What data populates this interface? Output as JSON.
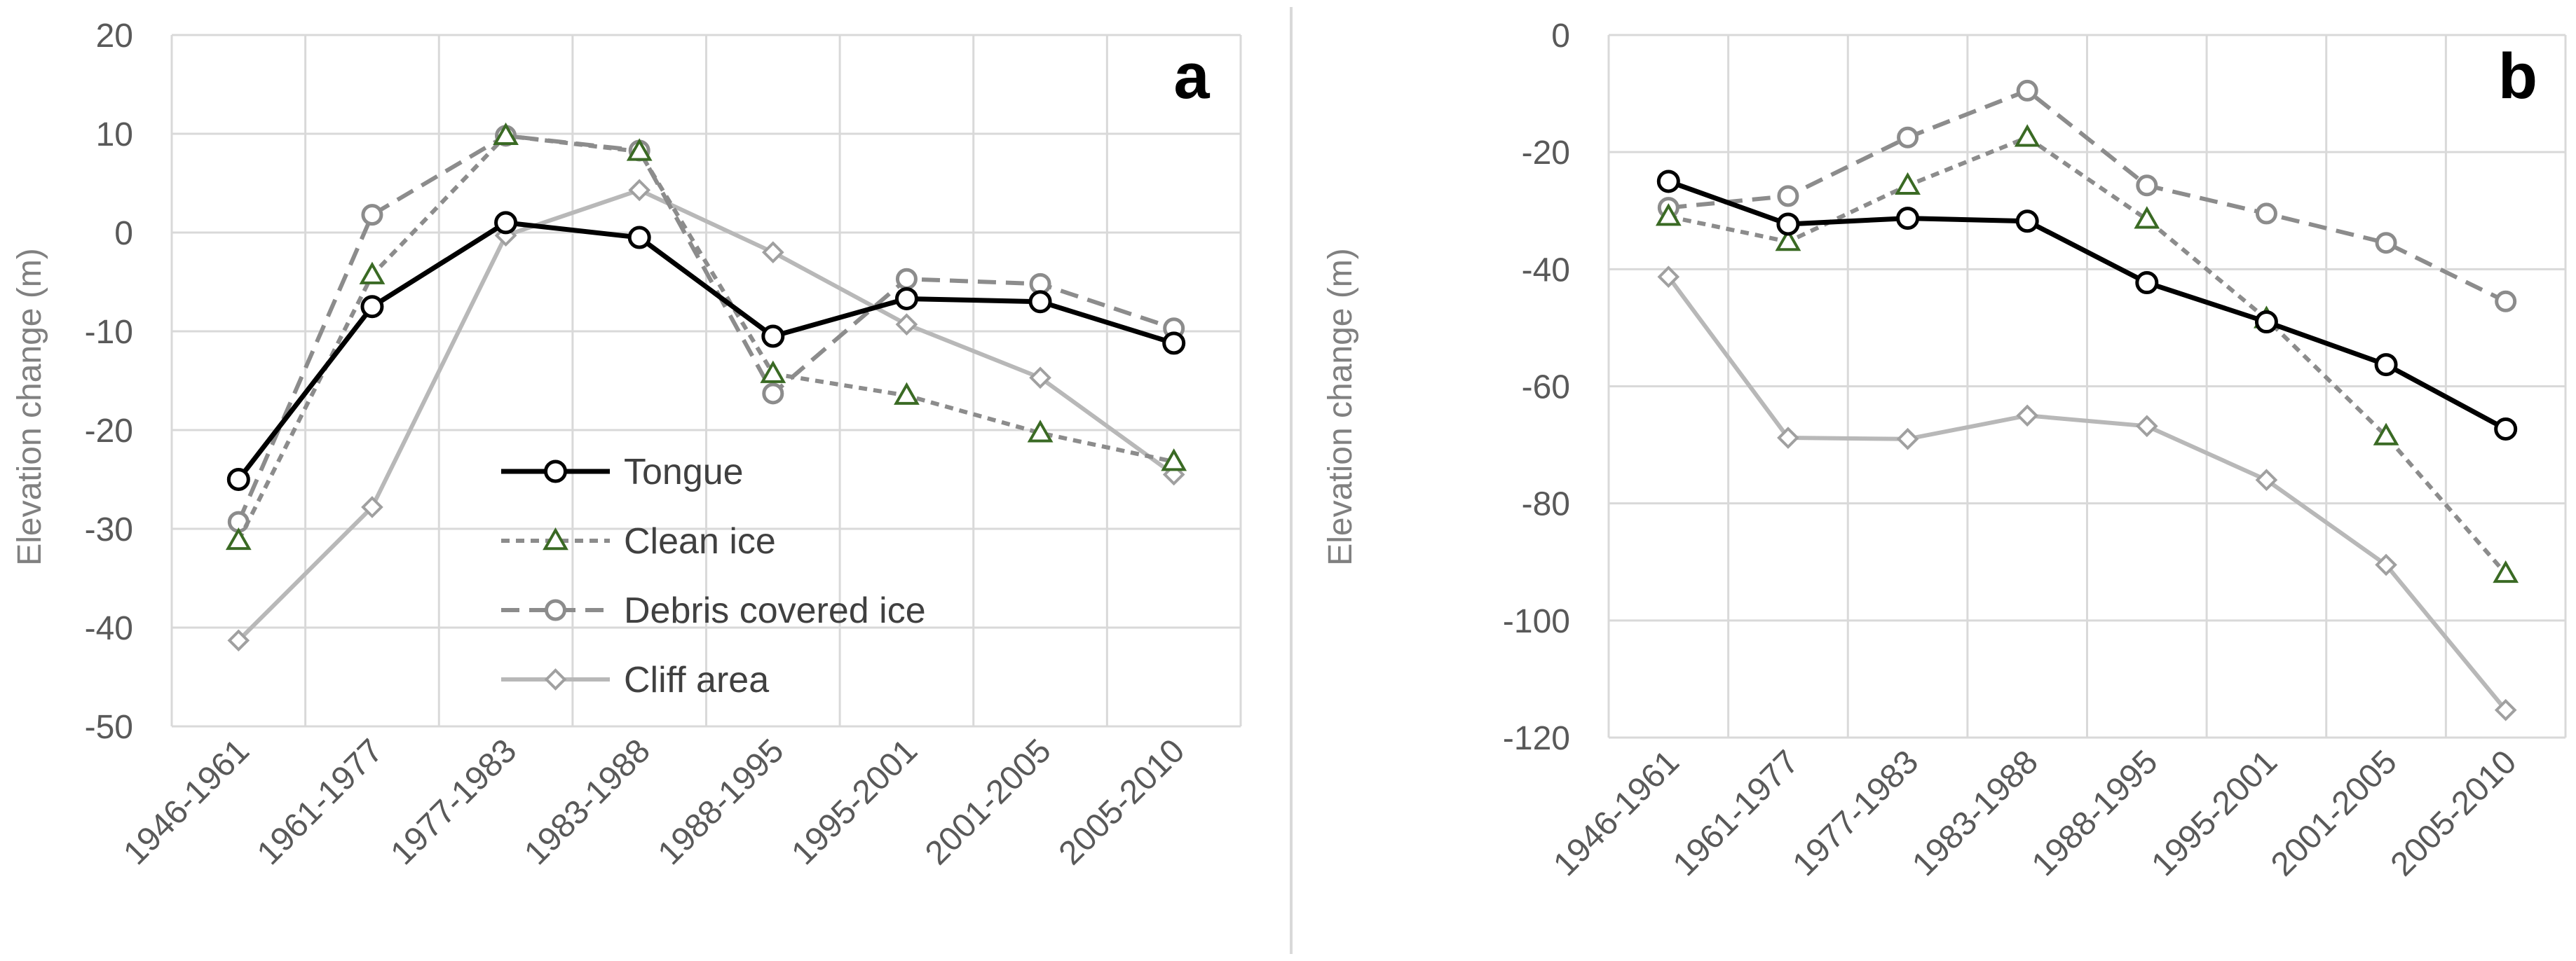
{
  "chart_data": [
    {
      "type": "line",
      "panel_label": "a",
      "ylabel": "Elevation change (m)",
      "xlabel": "",
      "ylim": [
        -50,
        20
      ],
      "yticks": [
        "20",
        "10",
        "0",
        "-10",
        "-20",
        "-30",
        "-40",
        "-50"
      ],
      "ytick_values": [
        20,
        10,
        0,
        -10,
        -20,
        -30,
        -40,
        -50
      ],
      "categories": [
        "1946-1961",
        "1961-1977",
        "1977-1983",
        "1983-1988",
        "1988-1995",
        "1995-2001",
        "2001-2005",
        "2005-2010"
      ],
      "grid": true,
      "legend": "center-left",
      "series": [
        {
          "name": "Tongue",
          "values": [
            -25.0,
            -7.5,
            1.0,
            -0.5,
            -10.5,
            -6.7,
            -7.0,
            -11.2
          ]
        },
        {
          "name": "Clean ice",
          "values": [
            -31.2,
            -4.3,
            9.8,
            8.2,
            -14.3,
            -16.5,
            -20.3,
            -23.2
          ]
        },
        {
          "name": "Debris covered ice",
          "values": [
            -29.3,
            1.8,
            9.8,
            8.3,
            -16.3,
            -4.7,
            -5.2,
            -9.7
          ]
        },
        {
          "name": "Cliff area",
          "values": [
            -41.3,
            -27.8,
            -0.3,
            4.3,
            -2.0,
            -9.3,
            -14.7,
            -24.5
          ]
        }
      ]
    },
    {
      "type": "line",
      "panel_label": "b",
      "ylabel": "Elevation change (m)",
      "xlabel": "",
      "ylim": [
        -120,
        0
      ],
      "yticks": [
        "0",
        "-20",
        "-40",
        "-60",
        "-80",
        "-100",
        "-120"
      ],
      "ytick_values": [
        0,
        -20,
        -40,
        -60,
        -80,
        -100,
        -120
      ],
      "categories": [
        "1946-1961",
        "1961-1977",
        "1977-1983",
        "1983-1988",
        "1988-1995",
        "1995-2001",
        "2001-2005",
        "2005-2010"
      ],
      "grid": true,
      "legend": "none",
      "series": [
        {
          "name": "Tongue",
          "values": [
            -25.0,
            -32.3,
            -31.3,
            -31.8,
            -42.3,
            -49.0,
            -56.3,
            -67.3
          ]
        },
        {
          "name": "Clean ice",
          "values": [
            -31.0,
            -35.3,
            -25.7,
            -17.5,
            -31.5,
            -48.5,
            -68.5,
            -92.0
          ]
        },
        {
          "name": "Debris covered ice",
          "values": [
            -29.5,
            -27.5,
            -17.5,
            -9.5,
            -25.7,
            -30.5,
            -35.5,
            -45.5
          ]
        },
        {
          "name": "Cliff area",
          "values": [
            -41.3,
            -68.8,
            -69.0,
            -65.0,
            -66.8,
            -76.0,
            -90.5,
            -115.3
          ]
        }
      ]
    }
  ],
  "series_styles": {
    "Tongue": {
      "line_color": "#000000",
      "marker": "circle",
      "marker_stroke": "#000000",
      "dash": "solid"
    },
    "Clean ice": {
      "line_color": "#8c8c8c",
      "marker": "triangle",
      "marker_stroke": "#3a6a24",
      "dash": "short-dash"
    },
    "Debris covered ice": {
      "line_color": "#8c8c8c",
      "marker": "circle",
      "marker_stroke": "#8c8c8c",
      "dash": "long-dash"
    },
    "Cliff area": {
      "line_color": "#b8b8b8",
      "marker": "diamond",
      "marker_stroke": "#a0a0a0",
      "dash": "solid"
    }
  },
  "colors": {
    "grid": "#d9d9d9",
    "tick_text": "#595959",
    "axis_title": "#808080",
    "divider": "#d9d9d9"
  }
}
